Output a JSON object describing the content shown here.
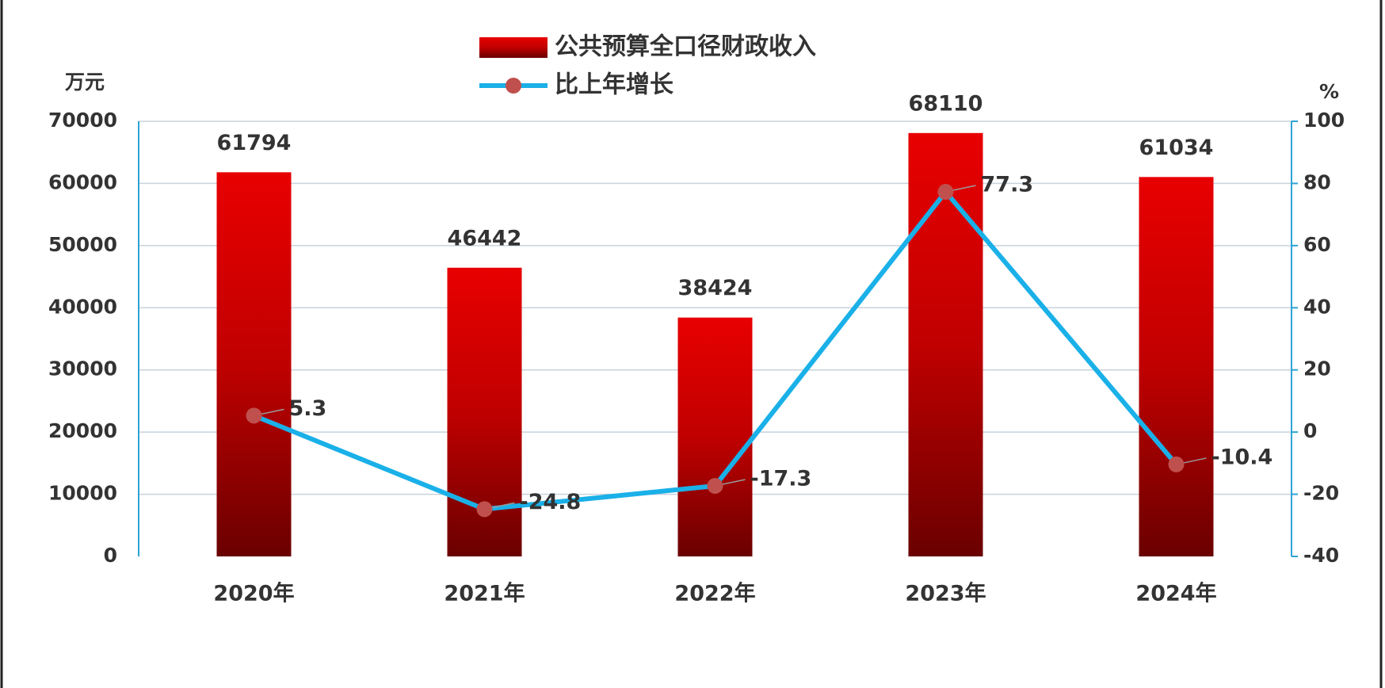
{
  "chart_data": {
    "type": "combo",
    "y_label": "万元",
    "y2_label": "%",
    "categories": [
      "2020年",
      "2021年",
      "2022年",
      "2023年",
      "2024年"
    ],
    "series": [
      {
        "name": "公共预算全口径财政收入",
        "type": "bar",
        "color": "#c00000",
        "values": [
          61794,
          46442,
          38424,
          68110,
          61034
        ]
      },
      {
        "name": "比上年增长",
        "type": "line",
        "axis": "y2",
        "color": "#1ab0e8",
        "marker_color": "#c0504d",
        "values": [
          5.3,
          -24.8,
          -17.3,
          77.3,
          -10.4
        ]
      }
    ],
    "ylim": [
      0,
      70000
    ],
    "yticks": [
      0,
      10000,
      20000,
      30000,
      40000,
      50000,
      60000,
      70000
    ],
    "y2lim": [
      -40,
      100
    ],
    "y2ticks": [
      -40,
      -20,
      0,
      20,
      40,
      60,
      80,
      100
    ],
    "grid": true,
    "legend": "top"
  }
}
